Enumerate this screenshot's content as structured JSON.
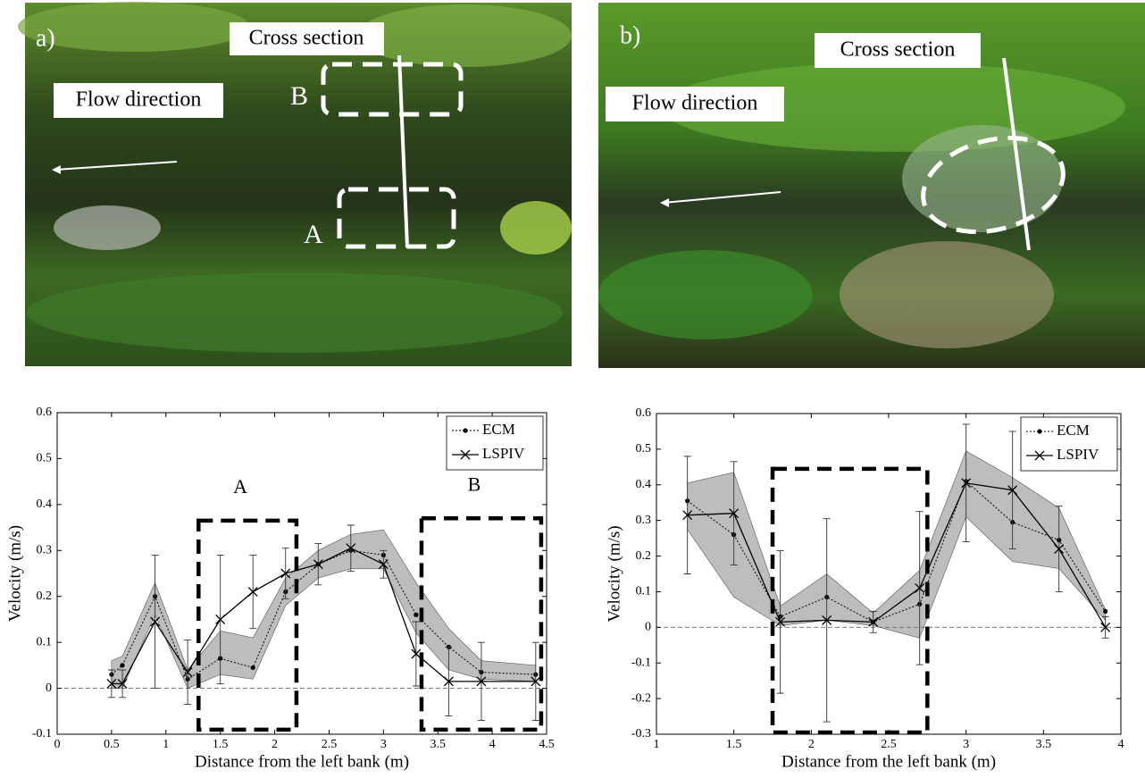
{
  "photos": [
    {
      "label": "a)",
      "cross_section": "Cross section",
      "flow": "Flow direction",
      "box_b": "B",
      "box_a": "A"
    },
    {
      "label": "b)",
      "cross_section": "Cross section",
      "flow": "Flow direction"
    }
  ],
  "chart_data": [
    {
      "type": "line",
      "xlabel": "Distance from the left bank (m)",
      "ylabel": "Velocity (m/s)",
      "xlim": [
        0,
        4.5
      ],
      "xticks": [
        0,
        0.5,
        1,
        1.5,
        2,
        2.5,
        3,
        3.5,
        4,
        4.5
      ],
      "ylim": [
        -0.1,
        0.6
      ],
      "yticks": [
        -0.1,
        0,
        0.1,
        0.2,
        0.3,
        0.4,
        0.5,
        0.6
      ],
      "zero_line": true,
      "legend": "upper right",
      "x": [
        0.5,
        0.6,
        0.9,
        1.2,
        1.5,
        1.8,
        2.1,
        2.4,
        2.7,
        3.0,
        3.3,
        3.6,
        3.9,
        4.4
      ],
      "series": [
        {
          "name": "ECM",
          "color": "#000000",
          "marker": "dot",
          "dashed": true,
          "band_color": "#bdbdbd",
          "values": [
            0.03,
            0.05,
            0.2,
            0.02,
            0.065,
            0.045,
            0.21,
            0.27,
            0.3,
            0.29,
            0.16,
            0.09,
            0.035,
            0.03
          ],
          "lower": [
            0.0,
            0.0,
            0.16,
            0.0,
            0.03,
            0.02,
            0.18,
            0.24,
            0.26,
            0.26,
            0.12,
            0.04,
            0.02,
            0.015
          ],
          "upper": [
            0.06,
            0.07,
            0.23,
            0.04,
            0.125,
            0.11,
            0.24,
            0.3,
            0.335,
            0.345,
            0.23,
            0.13,
            0.06,
            0.05
          ]
        },
        {
          "name": "LSPIV",
          "color": "#000000",
          "marker": "x",
          "dashed": false,
          "values": [
            0.01,
            0.01,
            0.145,
            0.035,
            0.15,
            0.21,
            0.25,
            0.27,
            0.305,
            0.27,
            0.075,
            0.015,
            0.015,
            0.015
          ],
          "errors": [
            0.03,
            0.03,
            0.145,
            0.07,
            0.14,
            0.08,
            0.055,
            0.045,
            0.05,
            0.03,
            0.07,
            0.075,
            0.085,
            0.085
          ]
        }
      ],
      "regions": [
        {
          "label": "A",
          "x": [
            1.3,
            2.2
          ],
          "y": [
            -0.09,
            0.365
          ]
        },
        {
          "label": "B",
          "x": [
            3.35,
            4.45
          ],
          "y": [
            -0.09,
            0.37
          ]
        }
      ]
    },
    {
      "type": "line",
      "xlabel": "Distance from the left bank (m)",
      "ylabel": "Velocity (m/s)",
      "xlim": [
        1,
        4
      ],
      "xticks": [
        1,
        1.5,
        2,
        2.5,
        3,
        3.5,
        4
      ],
      "ylim": [
        -0.3,
        0.6
      ],
      "yticks": [
        -0.3,
        -0.2,
        -0.1,
        0,
        0.1,
        0.2,
        0.3,
        0.4,
        0.5,
        0.6
      ],
      "zero_line": true,
      "legend": "upper right",
      "x": [
        1.2,
        1.5,
        1.8,
        2.1,
        2.4,
        2.7,
        3.0,
        3.3,
        3.6,
        3.9
      ],
      "series": [
        {
          "name": "ECM",
          "color": "#000000",
          "marker": "dot",
          "dashed": true,
          "band_color": "#bdbdbd",
          "values": [
            0.355,
            0.26,
            0.03,
            0.085,
            0.015,
            0.065,
            0.41,
            0.295,
            0.245,
            0.045
          ],
          "lower": [
            0.275,
            0.085,
            0.005,
            0.02,
            0.005,
            -0.03,
            0.31,
            0.185,
            0.165,
            0.02
          ],
          "upper": [
            0.405,
            0.435,
            0.06,
            0.15,
            0.04,
            0.16,
            0.495,
            0.42,
            0.335,
            0.05
          ]
        },
        {
          "name": "LSPIV",
          "color": "#000000",
          "marker": "x",
          "dashed": false,
          "values": [
            0.315,
            0.32,
            0.015,
            0.02,
            0.015,
            0.11,
            0.405,
            0.385,
            0.22,
            0.0
          ],
          "errors": [
            0.165,
            0.145,
            0.2,
            0.285,
            0.03,
            0.215,
            0.165,
            0.165,
            0.12,
            0.03
          ]
        }
      ],
      "regions": [
        {
          "x": [
            1.75,
            2.75
          ],
          "y": [
            -0.295,
            0.445
          ]
        }
      ]
    }
  ]
}
